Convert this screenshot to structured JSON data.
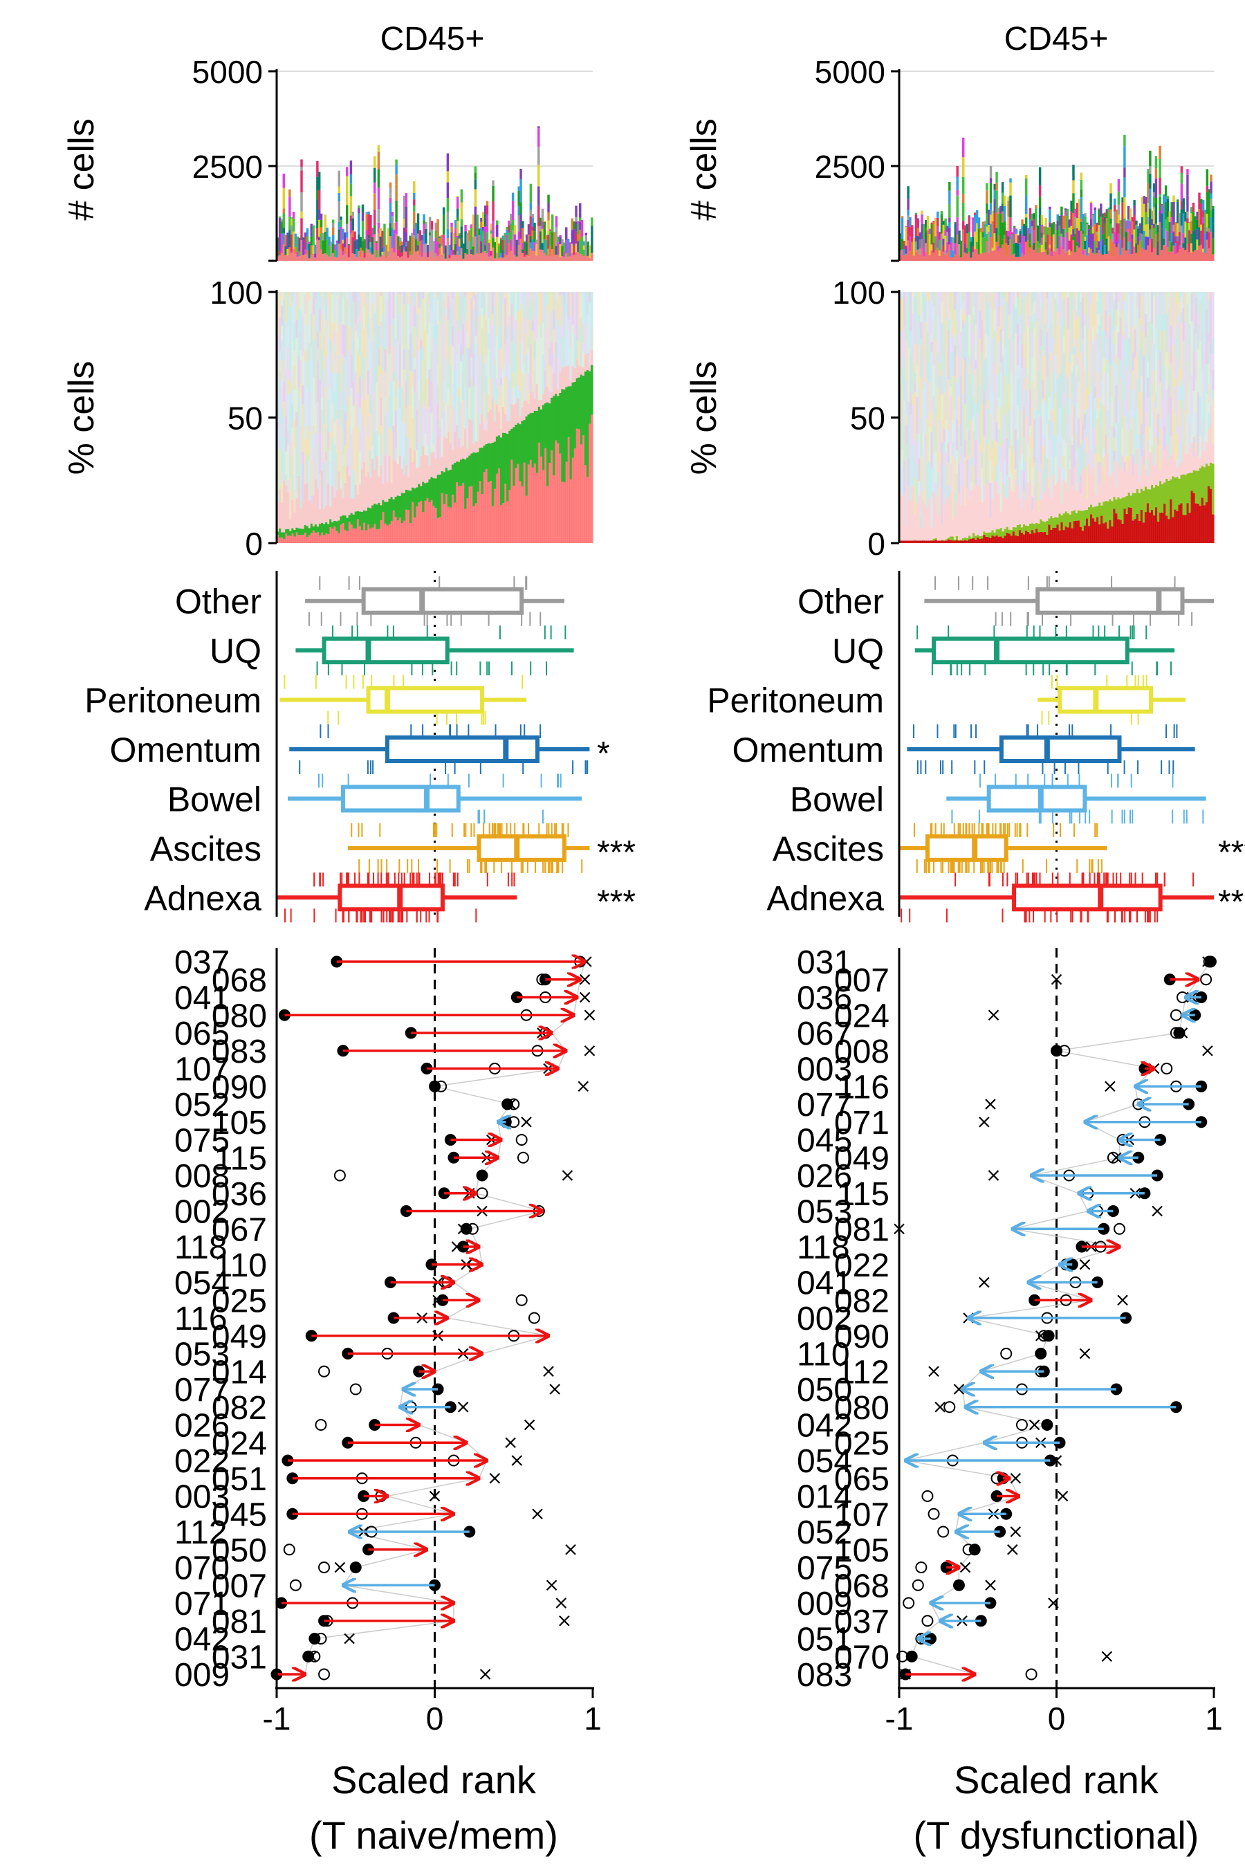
{
  "panels": [
    {
      "column_title": "CD45+",
      "x_axis_label_line1": "Scaled rank",
      "x_axis_label_line2": "(T naive/mem)",
      "highlight_colors": [
        "#ff6b6b",
        "#2db52d"
      ]
    },
    {
      "column_title": "CD45+",
      "x_axis_label_line1": "Scaled rank",
      "x_axis_label_line2": "(T dysfunctional)",
      "highlight_colors": [
        "#cc0000",
        "#88c425"
      ]
    }
  ],
  "chart_data": [
    {
      "type": "bar",
      "panel": "left-top",
      "ylabel": "# cells",
      "ylim": [
        0,
        5000
      ],
      "yticks": [
        "5000",
        "2500"
      ],
      "stacked": true,
      "n_samples": 160,
      "note_values": "per-sample stacked counts of cell types; individual values not labeled"
    },
    {
      "type": "area",
      "panel": "left-middle",
      "ylabel": "% cells",
      "ylim": [
        0,
        100
      ],
      "yticks": [
        "100",
        "50",
        "0"
      ],
      "highlight_fraction_range": [
        0.05,
        0.7
      ]
    },
    {
      "type": "box",
      "panel": "left-box",
      "xlim": [
        -1,
        1
      ],
      "categories": [
        "Other",
        "UQ",
        "Peritoneum",
        "Omentum",
        "Bowel",
        "Ascites",
        "Adnexa"
      ],
      "colors": [
        "#9b9b9b",
        "#1b9e77",
        "#e8e33a",
        "#1f73b4",
        "#5db4e5",
        "#e8a419",
        "#ee2222"
      ],
      "boxes": [
        {
          "q1": -0.45,
          "median": -0.08,
          "q3": 0.55,
          "wlo": -0.82,
          "whi": 0.82
        },
        {
          "q1": -0.7,
          "median": -0.42,
          "q3": 0.08,
          "wlo": -0.88,
          "whi": 0.88
        },
        {
          "q1": -0.42,
          "median": -0.3,
          "q3": 0.3,
          "wlo": -0.98,
          "whi": 0.58
        },
        {
          "q1": -0.3,
          "median": 0.45,
          "q3": 0.65,
          "wlo": -0.92,
          "whi": 0.98
        },
        {
          "q1": -0.58,
          "median": -0.05,
          "q3": 0.15,
          "wlo": -0.93,
          "whi": 0.93
        },
        {
          "q1": 0.28,
          "median": 0.52,
          "q3": 0.82,
          "wlo": -0.55,
          "whi": 0.98
        },
        {
          "q1": -0.6,
          "median": -0.22,
          "q3": 0.05,
          "wlo": -1.0,
          "whi": 0.52
        }
      ],
      "significance": [
        "",
        "",
        "",
        "*",
        "",
        "***",
        "***"
      ]
    },
    {
      "type": "scatter",
      "panel": "left-bottom",
      "xlabel": "Scaled rank\n(T naive/mem)",
      "xlim": [
        -1,
        1
      ],
      "xticks": [
        "-1",
        "0",
        "1"
      ],
      "labels_outer": [
        "037",
        "041",
        "065",
        "107",
        "052",
        "075",
        "008",
        "002",
        "118",
        "054",
        "116",
        "053",
        "077",
        "026",
        "022",
        "003",
        "112",
        "070",
        "071",
        "042",
        "009"
      ],
      "labels_inner": [
        "068",
        "080",
        "083",
        "090",
        "105",
        "115",
        "036",
        "067",
        "110",
        "025",
        "049",
        "014",
        "082",
        "024",
        "051",
        "045",
        "050",
        "007",
        "081",
        "031"
      ],
      "rows": [
        {
          "id": "037",
          "from": -0.62,
          "to": 0.95,
          "others": [
            0.92,
            0.96
          ]
        },
        {
          "id": "068",
          "from": 0.7,
          "to": 0.92,
          "others": [
            0.68,
            0.95
          ]
        },
        {
          "id": "041",
          "from": 0.52,
          "to": 0.9,
          "others": [
            0.7,
            0.95
          ]
        },
        {
          "id": "080",
          "from": -0.95,
          "to": 0.88,
          "others": [
            0.58,
            0.98
          ]
        },
        {
          "id": "065",
          "from": -0.15,
          "to": 0.74,
          "others": [
            0.7,
            0.68
          ]
        },
        {
          "id": "083",
          "from": -0.58,
          "to": 0.83,
          "others": [
            0.65,
            0.98
          ]
        },
        {
          "id": "107",
          "from": -0.05,
          "to": 0.78,
          "others": [
            0.38,
            0.72
          ]
        },
        {
          "id": "090",
          "from": 0.0,
          "to": 0.0,
          "others": [
            0.04,
            0.94
          ]
        },
        {
          "id": "052",
          "from": 0.46,
          "to": 0.48,
          "others": [
            0.5,
            0.48
          ]
        },
        {
          "id": "105",
          "from": 0.45,
          "to": 0.4,
          "others": [
            0.5,
            0.58
          ]
        },
        {
          "id": "075",
          "from": 0.1,
          "to": 0.42,
          "others": [
            0.55,
            0.36
          ]
        },
        {
          "id": "115",
          "from": 0.12,
          "to": 0.4,
          "others": [
            0.56,
            0.33
          ]
        },
        {
          "id": "008",
          "from": 0.3,
          "to": 0.28,
          "others": [
            -0.6,
            0.84
          ]
        },
        {
          "id": "036",
          "from": 0.06,
          "to": 0.26,
          "others": [
            0.3,
            0.22
          ]
        },
        {
          "id": "002",
          "from": -0.18,
          "to": 0.68,
          "others": [
            0.66,
            0.3
          ]
        },
        {
          "id": "067",
          "from": 0.2,
          "to": 0.22,
          "others": [
            0.24,
            0.18
          ]
        },
        {
          "id": "118",
          "from": 0.18,
          "to": 0.28,
          "others": [
            0.22,
            0.14
          ]
        },
        {
          "id": "110",
          "from": -0.02,
          "to": 0.3,
          "others": [
            0.25,
            0.2
          ]
        },
        {
          "id": "054",
          "from": -0.28,
          "to": 0.12,
          "others": [
            0.08,
            0.02
          ]
        },
        {
          "id": "025",
          "from": 0.05,
          "to": 0.28,
          "others": [
            0.55,
            0.02
          ]
        },
        {
          "id": "116",
          "from": -0.26,
          "to": 0.08,
          "others": [
            0.63,
            -0.08
          ]
        },
        {
          "id": "049",
          "from": -0.78,
          "to": 0.72,
          "others": [
            0.5,
            0.02
          ]
        },
        {
          "id": "053",
          "from": -0.55,
          "to": 0.3,
          "others": [
            -0.3,
            0.18
          ]
        },
        {
          "id": "014",
          "from": -0.1,
          "to": 0.0,
          "others": [
            -0.7,
            0.72
          ]
        },
        {
          "id": "077",
          "from": 0.02,
          "to": -0.2,
          "others": [
            -0.5,
            0.76
          ]
        },
        {
          "id": "082",
          "from": 0.1,
          "to": -0.22,
          "others": [
            -0.15,
            0.18
          ]
        },
        {
          "id": "026",
          "from": -0.38,
          "to": -0.1,
          "others": [
            -0.72,
            0.6
          ]
        },
        {
          "id": "024",
          "from": -0.55,
          "to": 0.2,
          "others": [
            -0.12,
            0.48
          ]
        },
        {
          "id": "022",
          "from": -0.93,
          "to": 0.33,
          "others": [
            0.12,
            0.52
          ]
        },
        {
          "id": "051",
          "from": -0.9,
          "to": 0.28,
          "others": [
            -0.46,
            0.38
          ]
        },
        {
          "id": "003",
          "from": -0.45,
          "to": -0.3,
          "others": [
            -0.34,
            0.0
          ]
        },
        {
          "id": "045",
          "from": -0.9,
          "to": 0.12,
          "others": [
            -0.46,
            0.65
          ]
        },
        {
          "id": "112",
          "from": 0.22,
          "to": -0.54,
          "others": [
            -0.4,
            -0.45
          ]
        },
        {
          "id": "050",
          "from": -0.42,
          "to": -0.05,
          "others": [
            -0.92,
            0.86
          ]
        },
        {
          "id": "070",
          "from": -0.5,
          "to": -0.5,
          "others": [
            -0.7,
            -0.6
          ]
        },
        {
          "id": "007",
          "from": 0.0,
          "to": -0.58,
          "others": [
            -0.88,
            0.74
          ]
        },
        {
          "id": "071",
          "from": -0.97,
          "to": 0.12,
          "others": [
            -0.52,
            0.8
          ]
        },
        {
          "id": "081",
          "from": -0.7,
          "to": 0.12,
          "others": [
            -0.68,
            0.82
          ]
        },
        {
          "id": "042",
          "from": -0.76,
          "to": -0.76,
          "others": [
            -0.72,
            -0.54
          ]
        },
        {
          "id": "031",
          "from": -0.8,
          "to": -0.8,
          "others": [
            -0.76,
            -0.78
          ]
        },
        {
          "id": "009",
          "from": -1.0,
          "to": -0.82,
          "others": [
            -0.7,
            0.32
          ]
        }
      ]
    },
    {
      "type": "bar",
      "panel": "right-top",
      "ylabel": "# cells",
      "ylim": [
        0,
        5000
      ],
      "yticks": [
        "5000",
        "2500"
      ],
      "stacked": true,
      "n_samples": 160
    },
    {
      "type": "area",
      "panel": "right-middle",
      "ylabel": "% cells",
      "ylim": [
        0,
        100
      ],
      "yticks": [
        "100",
        "50",
        "0"
      ],
      "highlight_fraction_range": [
        0.0,
        0.32
      ]
    },
    {
      "type": "box",
      "panel": "right-box",
      "xlim": [
        -1,
        1
      ],
      "categories": [
        "Other",
        "UQ",
        "Peritoneum",
        "Omentum",
        "Bowel",
        "Ascites",
        "Adnexa"
      ],
      "colors": [
        "#9b9b9b",
        "#1b9e77",
        "#e8e33a",
        "#1f73b4",
        "#5db4e5",
        "#e8a419",
        "#ee2222"
      ],
      "boxes": [
        {
          "q1": -0.12,
          "median": 0.65,
          "q3": 0.8,
          "wlo": -0.84,
          "whi": 1.0
        },
        {
          "q1": -0.78,
          "median": -0.38,
          "q3": 0.45,
          "wlo": -0.9,
          "whi": 0.75
        },
        {
          "q1": 0.02,
          "median": 0.25,
          "q3": 0.6,
          "wlo": -0.12,
          "whi": 0.82
        },
        {
          "q1": -0.35,
          "median": -0.06,
          "q3": 0.4,
          "wlo": -0.95,
          "whi": 0.88
        },
        {
          "q1": -0.43,
          "median": -0.1,
          "q3": 0.18,
          "wlo": -0.7,
          "whi": 0.95
        },
        {
          "q1": -0.82,
          "median": -0.52,
          "q3": -0.32,
          "wlo": -1.0,
          "whi": 0.32
        },
        {
          "q1": -0.27,
          "median": 0.28,
          "q3": 0.66,
          "wlo": -1.0,
          "whi": 1.0
        }
      ],
      "significance": [
        "",
        "",
        "",
        "",
        "",
        "***",
        "**"
      ]
    },
    {
      "type": "scatter",
      "panel": "right-bottom",
      "xlabel": "Scaled rank\n(T dysfunctional)",
      "xlim": [
        -1,
        1
      ],
      "xticks": [
        "-1",
        "0",
        "1"
      ],
      "labels_outer": [
        "031",
        "036",
        "067",
        "003",
        "077",
        "045",
        "026",
        "053",
        "118",
        "041",
        "002",
        "110",
        "050",
        "042",
        "054",
        "014",
        "052",
        "075",
        "009",
        "051",
        "083"
      ],
      "labels_inner": [
        "007",
        "024",
        "008",
        "116",
        "071",
        "049",
        "115",
        "081",
        "022",
        "082",
        "090",
        "112",
        "080",
        "025",
        "065",
        "107",
        "105",
        "068",
        "037",
        "070"
      ],
      "rows": [
        {
          "id": "031",
          "from": 0.98,
          "to": 0.98,
          "others": [
            0.97,
            0.96
          ]
        },
        {
          "id": "007",
          "from": 0.72,
          "to": 0.9,
          "others": [
            0.95,
            0.0
          ]
        },
        {
          "id": "036",
          "from": 0.92,
          "to": 0.82,
          "others": [
            0.8,
            0.86
          ]
        },
        {
          "id": "024",
          "from": 0.88,
          "to": 0.8,
          "others": [
            0.76,
            -0.4
          ]
        },
        {
          "id": "067",
          "from": 0.78,
          "to": 0.78,
          "others": [
            0.76,
            0.8
          ]
        },
        {
          "id": "008",
          "from": 0.0,
          "to": 0.0,
          "others": [
            0.05,
            0.96
          ]
        },
        {
          "id": "003",
          "from": 0.56,
          "to": 0.62,
          "others": [
            0.7,
            0.62
          ]
        },
        {
          "id": "116",
          "from": 0.92,
          "to": 0.5,
          "others": [
            0.76,
            0.34
          ]
        },
        {
          "id": "077",
          "from": 0.84,
          "to": 0.52,
          "others": [
            0.52,
            -0.42
          ]
        },
        {
          "id": "071",
          "from": 0.92,
          "to": 0.18,
          "others": [
            0.56,
            -0.46
          ]
        },
        {
          "id": "045",
          "from": 0.66,
          "to": 0.4,
          "others": [
            0.42,
            0.46
          ]
        },
        {
          "id": "049",
          "from": 0.52,
          "to": 0.4,
          "others": [
            0.36,
            0.38
          ]
        },
        {
          "id": "026",
          "from": 0.64,
          "to": -0.16,
          "others": [
            0.08,
            -0.4
          ]
        },
        {
          "id": "115",
          "from": 0.56,
          "to": 0.14,
          "others": [
            0.2,
            0.5
          ]
        },
        {
          "id": "053",
          "from": 0.36,
          "to": 0.2,
          "others": [
            0.26,
            0.64
          ]
        },
        {
          "id": "081",
          "from": 0.3,
          "to": -0.28,
          "others": [
            0.4,
            -1.0
          ]
        },
        {
          "id": "118",
          "from": 0.16,
          "to": 0.4,
          "others": [
            0.28,
            0.22
          ]
        },
        {
          "id": "022",
          "from": 0.1,
          "to": 0.02,
          "others": [
            0.06,
            0.18
          ]
        },
        {
          "id": "041",
          "from": 0.26,
          "to": -0.18,
          "others": [
            0.12,
            -0.46
          ]
        },
        {
          "id": "082",
          "from": -0.14,
          "to": 0.22,
          "others": [
            0.06,
            0.42
          ]
        },
        {
          "id": "002",
          "from": 0.44,
          "to": -0.56,
          "others": [
            -0.06,
            -0.56
          ]
        },
        {
          "id": "090",
          "from": -0.05,
          "to": -0.05,
          "others": [
            -0.08,
            -0.1
          ]
        },
        {
          "id": "110",
          "from": -0.1,
          "to": -0.1,
          "others": [
            -0.32,
            0.18
          ]
        },
        {
          "id": "112",
          "from": -0.08,
          "to": -0.48,
          "others": [
            -0.1,
            -0.78
          ]
        },
        {
          "id": "050",
          "from": 0.38,
          "to": -0.6,
          "others": [
            -0.22,
            -0.62
          ]
        },
        {
          "id": "080",
          "from": 0.76,
          "to": -0.58,
          "others": [
            -0.68,
            -0.74
          ]
        },
        {
          "id": "042",
          "from": -0.06,
          "to": -0.06,
          "others": [
            -0.22,
            -0.14
          ]
        },
        {
          "id": "025",
          "from": 0.02,
          "to": -0.46,
          "others": [
            -0.22,
            -0.1
          ]
        },
        {
          "id": "054",
          "from": -0.04,
          "to": -0.96,
          "others": [
            -0.66,
            0.0
          ]
        },
        {
          "id": "065",
          "from": -0.34,
          "to": -0.3,
          "others": [
            -0.38,
            -0.26
          ]
        },
        {
          "id": "014",
          "from": -0.38,
          "to": -0.24,
          "others": [
            -0.82,
            0.04
          ]
        },
        {
          "id": "107",
          "from": -0.32,
          "to": -0.62,
          "others": [
            -0.78,
            -0.4
          ]
        },
        {
          "id": "052",
          "from": -0.36,
          "to": -0.64,
          "others": [
            -0.72,
            -0.26
          ]
        },
        {
          "id": "105",
          "from": -0.52,
          "to": -0.52,
          "others": [
            -0.56,
            -0.28
          ]
        },
        {
          "id": "075",
          "from": -0.7,
          "to": -0.62,
          "others": [
            -0.86,
            -0.58
          ]
        },
        {
          "id": "068",
          "from": -0.62,
          "to": -0.62,
          "others": [
            -0.88,
            -0.42
          ]
        },
        {
          "id": "009",
          "from": -0.42,
          "to": -0.8,
          "others": [
            -0.94,
            -0.02
          ]
        },
        {
          "id": "037",
          "from": -0.48,
          "to": -0.74,
          "others": [
            -0.82,
            -0.6
          ]
        },
        {
          "id": "051",
          "from": -0.8,
          "to": -0.88,
          "others": [
            -0.86,
            -0.84
          ]
        },
        {
          "id": "070",
          "from": -0.92,
          "to": -0.92,
          "others": [
            -0.98,
            0.32
          ]
        },
        {
          "id": "083",
          "from": -0.96,
          "to": -0.52,
          "others": [
            -0.16,
            -0.96
          ]
        }
      ]
    }
  ]
}
